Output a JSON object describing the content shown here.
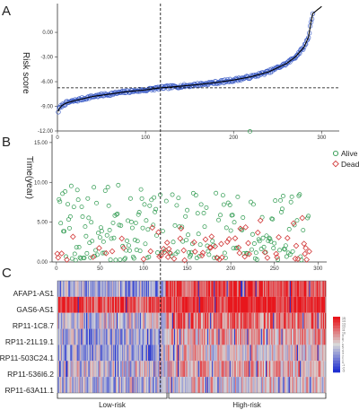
{
  "panels": {
    "a": {
      "letter": "A",
      "ylabel": "Risk score"
    },
    "b": {
      "letter": "B",
      "ylabel": "Time(year)"
    },
    "c": {
      "letter": "C"
    }
  },
  "colors": {
    "risk_points": "#3f5fc7",
    "risk_fit": "#000000",
    "alive": "#2e9a4f",
    "dead": "#d23a3a",
    "heat_high": "#e8161c",
    "heat_mid": "#d8d8d8",
    "heat_low": "#1f2fd0"
  },
  "chart_data": [
    {
      "type": "scatter",
      "id": "risk-score",
      "title": "",
      "xlabel": "",
      "ylabel": "Risk score",
      "xlim": [
        0,
        320
      ],
      "ylim": [
        -12.0,
        3.5
      ],
      "x_ticks": [
        0,
        100,
        200,
        300
      ],
      "y_ticks": [
        -12.0,
        -9.0,
        -6.0,
        -3.0,
        0.0
      ],
      "y_tick_labels": [
        "-12.00",
        "-9.00",
        "-6.00",
        "-3.00",
        "0.00"
      ],
      "n_samples": 290,
      "cutoff_index": 117,
      "cutoff_value": -6.75,
      "series": [
        {
          "marker": "circle",
          "profile_x": [
            1,
            2,
            5,
            10,
            20,
            40,
            60,
            80,
            100,
            117,
            140,
            160,
            180,
            200,
            220,
            240,
            260,
            270,
            280,
            285,
            288,
            290
          ],
          "profile_y": [
            -9.6,
            -9.3,
            -8.9,
            -8.6,
            -8.3,
            -7.8,
            -7.5,
            -7.2,
            -7.0,
            -6.75,
            -6.55,
            -6.35,
            -6.1,
            -5.8,
            -5.4,
            -4.8,
            -3.8,
            -3.0,
            -1.8,
            -0.6,
            1.3,
            2.3
          ]
        }
      ],
      "grid": false
    },
    {
      "type": "scatter",
      "id": "survival-time",
      "title": "",
      "xlabel": "",
      "ylabel": "Time(year)",
      "xlim": [
        -5,
        310
      ],
      "ylim": [
        0,
        16
      ],
      "x_ticks": [
        0,
        50,
        100,
        150,
        200,
        250,
        300
      ],
      "y_ticks": [
        0,
        5,
        10,
        15
      ],
      "y_tick_labels": [
        "0.00",
        "5.00",
        "10.00",
        "15.00"
      ],
      "legend": {
        "position": "right",
        "entries": [
          "Alive",
          "Dead"
        ]
      },
      "series": [
        {
          "name": "Alive",
          "marker": "circle"
        },
        {
          "name": "Dead",
          "marker": "diamond"
        }
      ],
      "grid": false
    },
    {
      "type": "heatmap",
      "id": "expression-heatmap",
      "title": "",
      "rows": [
        "AFAP1-AS1",
        "GAS6-AS1",
        "RP11-1C8.7",
        "RP11-21L19.1",
        "RP11-503C24.1",
        "RP11-536I6.2",
        "RP11-63A11.1"
      ],
      "columns_n": 290,
      "cutoff_index": 117,
      "group_labels": [
        "Low-risk",
        "High-risk"
      ],
      "color_scale_ticks": [
        "15",
        "14",
        "13",
        "12",
        "11",
        "10",
        "9",
        "8",
        "7",
        "6",
        "5",
        "4",
        "3",
        "2",
        "1",
        "0",
        "-1",
        "-2",
        "-3"
      ]
    }
  ]
}
